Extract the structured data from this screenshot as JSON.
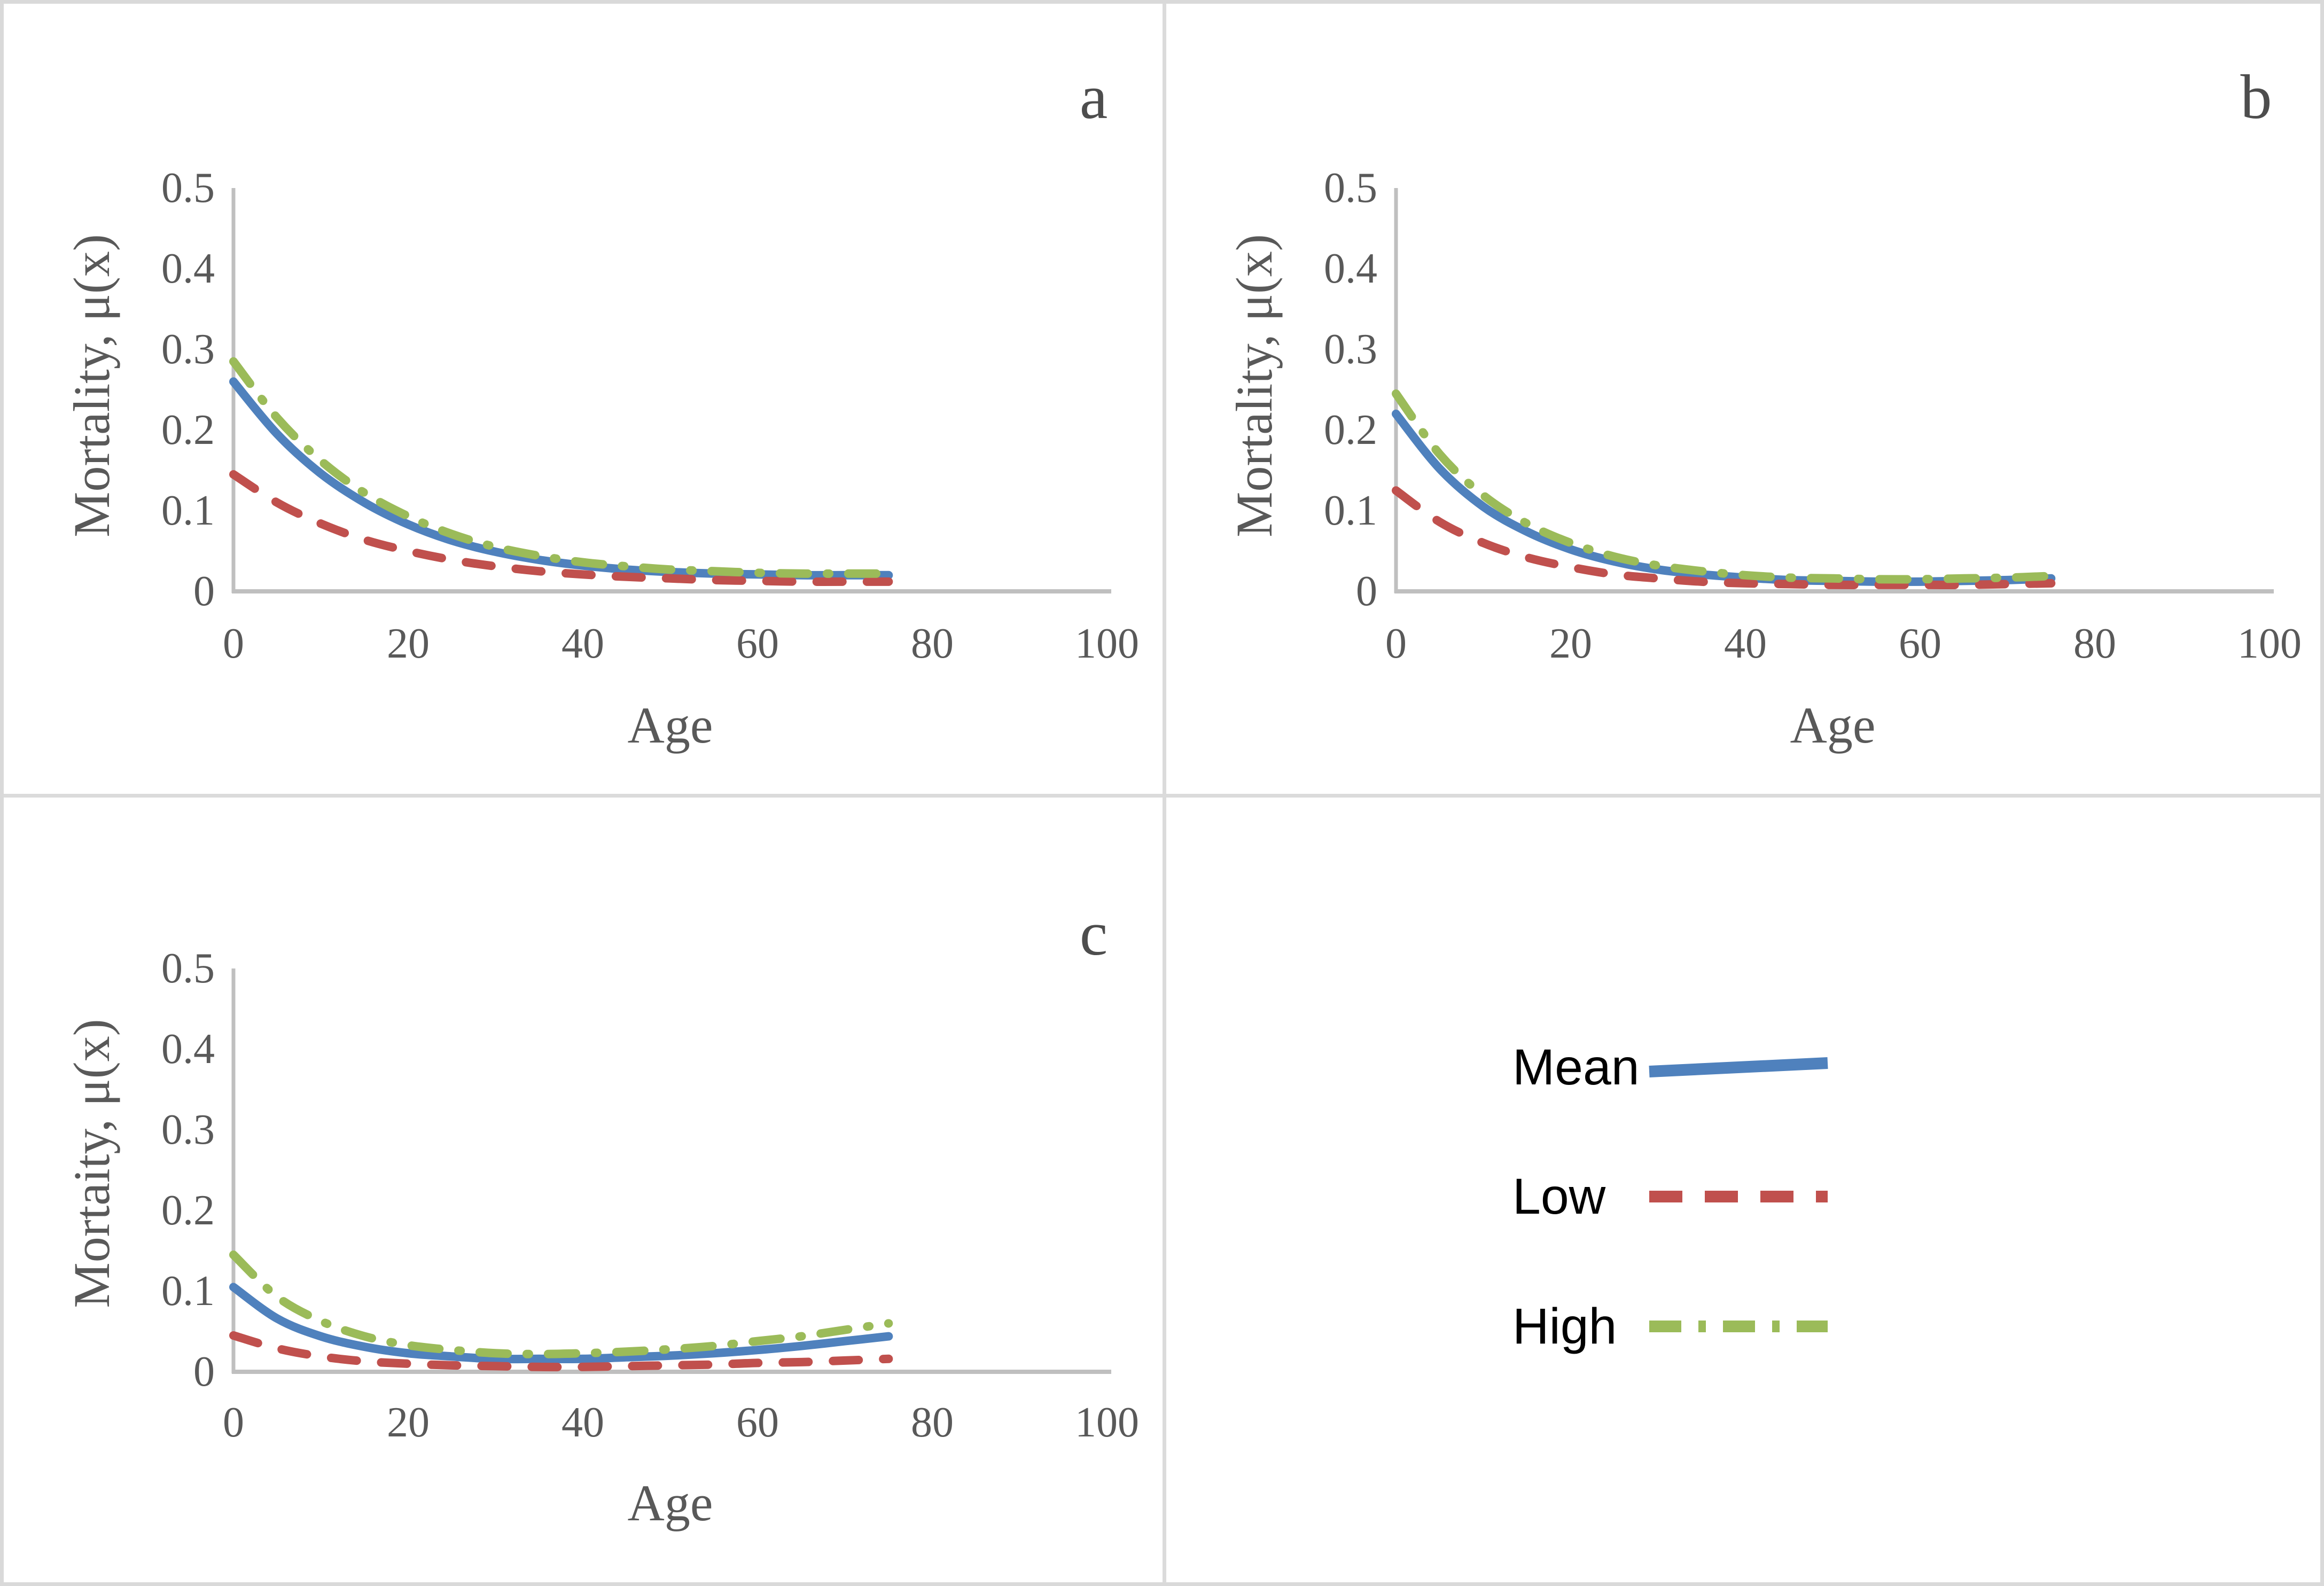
{
  "figure": {
    "background": "#ffffff",
    "border_color": "#d9d9d9",
    "divider_color": "#dbdbdb",
    "axis_color": "#bfbfbf",
    "tick_text_color": "#595959",
    "panel_letter_color": "#4d4d4d"
  },
  "legend": {
    "position": "bottom-right-quadrant",
    "items": [
      {
        "label": "Mean",
        "color": "#4F81BD",
        "style": "solid"
      },
      {
        "label": "Low",
        "color": "#C0504D",
        "style": "dashed"
      },
      {
        "label": "High",
        "color": "#9BBB59",
        "style": "dashdot"
      }
    ]
  },
  "chart_data": [
    {
      "type": "line",
      "panel_label": "a",
      "title": "",
      "xlabel": "Age",
      "ylabel": "Mortality, μ(x)",
      "xlim": [
        0,
        100
      ],
      "ylim": [
        0,
        0.5
      ],
      "xticks": [
        0,
        20,
        40,
        60,
        80,
        100
      ],
      "yticks": [
        0,
        0.1,
        0.2,
        0.3,
        0.4,
        0.5
      ],
      "grid": false,
      "x": [
        0,
        5,
        10,
        15,
        20,
        25,
        30,
        35,
        40,
        45,
        50,
        55,
        60,
        65,
        70,
        75
      ],
      "series": [
        {
          "name": "Mean",
          "style": "solid",
          "color": "#4F81BD",
          "values": [
            0.26,
            0.195,
            0.146,
            0.11,
            0.083,
            0.063,
            0.049,
            0.039,
            0.032,
            0.027,
            0.024,
            0.022,
            0.021,
            0.02,
            0.02,
            0.02
          ]
        },
        {
          "name": "Low",
          "style": "dashed",
          "color": "#C0504D",
          "values": [
            0.145,
            0.11,
            0.084,
            0.064,
            0.05,
            0.039,
            0.031,
            0.025,
            0.021,
            0.018,
            0.016,
            0.014,
            0.013,
            0.012,
            0.012,
            0.012
          ]
        },
        {
          "name": "High",
          "style": "dashdot",
          "color": "#9BBB59",
          "values": [
            0.285,
            0.215,
            0.162,
            0.122,
            0.093,
            0.071,
            0.055,
            0.044,
            0.036,
            0.031,
            0.027,
            0.025,
            0.023,
            0.022,
            0.022,
            0.022
          ]
        }
      ]
    },
    {
      "type": "line",
      "panel_label": "b",
      "title": "",
      "xlabel": "Age",
      "ylabel": "Mortality, μ(x)",
      "xlim": [
        0,
        100
      ],
      "ylim": [
        0,
        0.5
      ],
      "xticks": [
        0,
        20,
        40,
        60,
        80,
        100
      ],
      "yticks": [
        0,
        0.1,
        0.2,
        0.3,
        0.4,
        0.5
      ],
      "grid": false,
      "x": [
        0,
        5,
        10,
        15,
        20,
        25,
        30,
        35,
        40,
        45,
        50,
        55,
        60,
        65,
        70,
        75
      ],
      "series": [
        {
          "name": "Mean",
          "style": "solid",
          "color": "#4F81BD",
          "values": [
            0.22,
            0.152,
            0.105,
            0.074,
            0.052,
            0.037,
            0.027,
            0.021,
            0.017,
            0.014,
            0.013,
            0.012,
            0.012,
            0.013,
            0.014,
            0.016
          ]
        },
        {
          "name": "Low",
          "style": "dashed",
          "color": "#C0504D",
          "values": [
            0.125,
            0.086,
            0.06,
            0.042,
            0.03,
            0.021,
            0.016,
            0.012,
            0.01,
            0.009,
            0.008,
            0.008,
            0.008,
            0.008,
            0.009,
            0.01
          ]
        },
        {
          "name": "High",
          "style": "dashdot",
          "color": "#9BBB59",
          "values": [
            0.245,
            0.17,
            0.119,
            0.084,
            0.06,
            0.043,
            0.032,
            0.025,
            0.02,
            0.017,
            0.016,
            0.015,
            0.015,
            0.016,
            0.017,
            0.019
          ]
        }
      ]
    },
    {
      "type": "line",
      "panel_label": "c",
      "title": "",
      "xlabel": "Age",
      "ylabel": "Mortaity, μ(x)",
      "xlim": [
        0,
        100
      ],
      "ylim": [
        0,
        0.5
      ],
      "xticks": [
        0,
        20,
        40,
        60,
        80,
        100
      ],
      "yticks": [
        0,
        0.1,
        0.2,
        0.3,
        0.4,
        0.5
      ],
      "grid": false,
      "x": [
        0,
        5,
        10,
        15,
        20,
        25,
        30,
        35,
        40,
        45,
        50,
        55,
        60,
        65,
        70,
        75
      ],
      "series": [
        {
          "name": "Mean",
          "style": "solid",
          "color": "#4F81BD",
          "values": [
            0.105,
            0.066,
            0.044,
            0.031,
            0.023,
            0.019,
            0.016,
            0.016,
            0.016,
            0.018,
            0.02,
            0.023,
            0.027,
            0.032,
            0.038,
            0.044
          ]
        },
        {
          "name": "Low",
          "style": "dashed",
          "color": "#C0504D",
          "values": [
            0.045,
            0.029,
            0.019,
            0.013,
            0.01,
            0.008,
            0.007,
            0.006,
            0.006,
            0.007,
            0.008,
            0.009,
            0.011,
            0.012,
            0.014,
            0.016
          ]
        },
        {
          "name": "High",
          "style": "dashdot",
          "color": "#9BBB59",
          "values": [
            0.145,
            0.093,
            0.063,
            0.044,
            0.033,
            0.027,
            0.023,
            0.022,
            0.023,
            0.025,
            0.028,
            0.032,
            0.038,
            0.044,
            0.052,
            0.06
          ]
        }
      ]
    }
  ]
}
